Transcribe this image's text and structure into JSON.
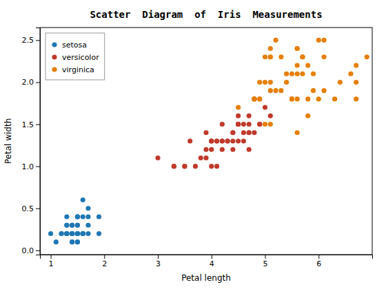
{
  "chart_data": {
    "type": "scatter",
    "title": "Scatter  Diagram  of  Iris  Measurements",
    "xlabel": "Petal length",
    "ylabel": "Petal width",
    "xlim": [
      0.8,
      7.0
    ],
    "ylim": [
      -0.05,
      2.65
    ],
    "xticks": [
      1,
      2,
      3,
      4,
      5,
      6
    ],
    "yticks": [
      {
        "value": 0,
        "label": "0.0"
      },
      0.5,
      {
        "value": 1,
        "label": "1.0"
      },
      1.5,
      {
        "value": 2,
        "label": "2.0"
      },
      2.5
    ],
    "marker": "circle",
    "legend": "upper-left",
    "grid": false,
    "series": [
      {
        "name": "setosa",
        "color": "#1f77b4",
        "x": [
          1.4,
          1.4,
          1.3,
          1.5,
          1.4,
          1.7,
          1.4,
          1.5,
          1.4,
          1.5,
          1.5,
          1.6,
          1.4,
          1.1,
          1.2,
          1.5,
          1.3,
          1.4,
          1.7,
          1.5,
          1.7,
          1.5,
          1.0,
          1.7,
          1.9,
          1.6,
          1.6,
          1.5,
          1.4,
          1.6,
          1.6,
          1.5,
          1.5,
          1.4,
          1.5,
          1.2,
          1.3,
          1.4,
          1.3,
          1.5,
          1.3,
          1.3,
          1.3,
          1.6,
          1.9,
          1.4,
          1.6,
          1.4,
          1.5,
          1.4
        ],
        "values": [
          0.2,
          0.2,
          0.2,
          0.2,
          0.2,
          0.4,
          0.3,
          0.2,
          0.2,
          0.1,
          0.2,
          0.2,
          0.1,
          0.1,
          0.2,
          0.4,
          0.4,
          0.3,
          0.3,
          0.3,
          0.2,
          0.4,
          0.2,
          0.5,
          0.2,
          0.2,
          0.4,
          0.2,
          0.2,
          0.2,
          0.2,
          0.4,
          0.1,
          0.2,
          0.2,
          0.2,
          0.2,
          0.1,
          0.2,
          0.3,
          0.3,
          0.3,
          0.2,
          0.6,
          0.4,
          0.3,
          0.2,
          0.2,
          0.2,
          0.2
        ]
      },
      {
        "name": "versicolor",
        "color": "#c0392b",
        "x": [
          4.7,
          4.5,
          4.9,
          4.0,
          4.6,
          4.5,
          4.7,
          3.3,
          4.6,
          3.9,
          3.5,
          4.2,
          4.0,
          4.7,
          3.6,
          4.4,
          4.5,
          4.1,
          4.5,
          3.9,
          4.8,
          4.0,
          4.9,
          4.7,
          4.3,
          4.4,
          4.8,
          5.0,
          4.5,
          3.5,
          3.8,
          3.7,
          3.9,
          5.1,
          4.5,
          4.5,
          4.7,
          4.4,
          4.1,
          4.0,
          4.4,
          4.6,
          4.0,
          3.3,
          4.2,
          4.2,
          4.2,
          4.3,
          3.0,
          4.1
        ],
        "values": [
          1.4,
          1.5,
          1.5,
          1.3,
          1.5,
          1.3,
          1.6,
          1.0,
          1.3,
          1.4,
          1.0,
          1.5,
          1.0,
          1.4,
          1.3,
          1.4,
          1.5,
          1.0,
          1.5,
          1.1,
          1.8,
          1.3,
          1.5,
          1.2,
          1.3,
          1.4,
          1.4,
          1.7,
          1.5,
          1.0,
          1.1,
          1.0,
          1.2,
          1.6,
          1.5,
          1.6,
          1.5,
          1.3,
          1.3,
          1.3,
          1.2,
          1.4,
          1.2,
          1.0,
          1.3,
          1.2,
          1.3,
          1.3,
          1.1,
          1.3
        ]
      },
      {
        "name": "virginica",
        "color": "#e67e00",
        "x": [
          6.0,
          5.1,
          5.9,
          5.6,
          5.8,
          6.6,
          4.5,
          6.3,
          5.8,
          6.1,
          5.1,
          5.3,
          5.5,
          5.0,
          5.1,
          5.3,
          5.5,
          6.7,
          6.9,
          5.0,
          5.7,
          4.9,
          6.7,
          4.9,
          5.7,
          6.0,
          4.8,
          4.9,
          5.6,
          5.8,
          6.1,
          6.4,
          5.6,
          5.1,
          5.6,
          6.1,
          5.6,
          5.5,
          4.8,
          5.4,
          5.6,
          5.1,
          5.9,
          5.7,
          5.2,
          5.0,
          5.2,
          5.4,
          5.1,
          6.7
        ],
        "values": [
          2.5,
          1.9,
          2.1,
          1.8,
          2.2,
          2.1,
          1.7,
          1.8,
          1.8,
          2.5,
          2.0,
          1.9,
          2.1,
          2.0,
          2.4,
          2.3,
          1.8,
          2.2,
          2.3,
          1.5,
          2.3,
          2.0,
          2.0,
          1.8,
          2.1,
          1.8,
          1.8,
          1.8,
          2.1,
          1.6,
          1.9,
          2.0,
          2.2,
          1.5,
          1.4,
          2.3,
          2.4,
          1.8,
          1.8,
          2.1,
          2.4,
          2.3,
          1.9,
          2.3,
          2.5,
          2.3,
          1.9,
          2.0,
          2.3,
          1.8
        ]
      }
    ]
  }
}
